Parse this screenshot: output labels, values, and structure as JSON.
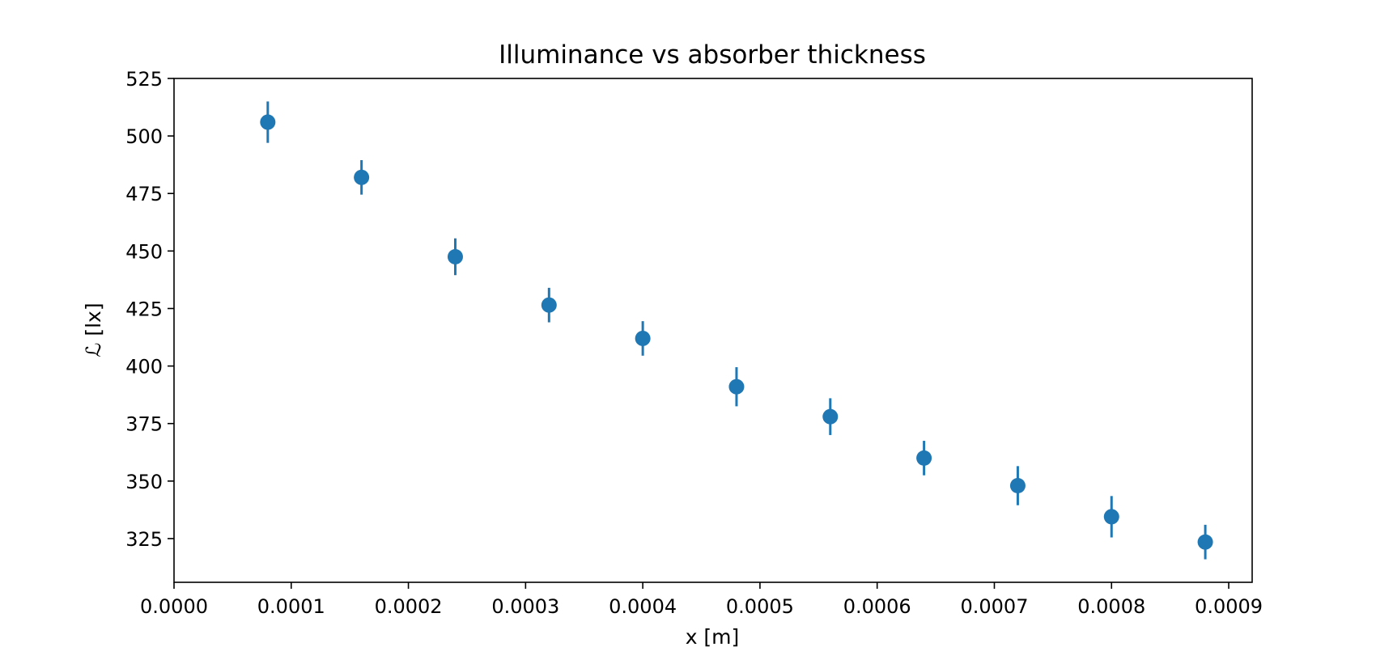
{
  "chart_data": {
    "type": "scatter",
    "title": "Illuminance vs absorber thickness",
    "xlabel": "x [m]",
    "ylabel": "ℒ [lx]",
    "xlim": [
      0.0,
      0.00092
    ],
    "ylim": [
      306,
      525
    ],
    "x_ticks": [
      "0.0000",
      "0.0001",
      "0.0002",
      "0.0003",
      "0.0004",
      "0.0005",
      "0.0006",
      "0.0007",
      "0.0008",
      "0.0009"
    ],
    "y_ticks": [
      "325",
      "350",
      "375",
      "400",
      "425",
      "450",
      "475",
      "500",
      "525"
    ],
    "grid": false,
    "legend": "none",
    "color": "#1f77b4",
    "series": [
      {
        "x": [
          8e-05,
          0.00016,
          0.00024,
          0.00032,
          0.0004,
          0.00048,
          0.00056,
          0.00064,
          0.00072,
          0.0008,
          0.00088
        ],
        "y": [
          506,
          482,
          447.5,
          426.5,
          412,
          391,
          378,
          360,
          348,
          334.5,
          323.5
        ],
        "yerr": [
          9,
          7.5,
          8,
          7.5,
          7.5,
          8.5,
          8,
          7.5,
          8.5,
          9,
          7.5
        ]
      }
    ]
  }
}
